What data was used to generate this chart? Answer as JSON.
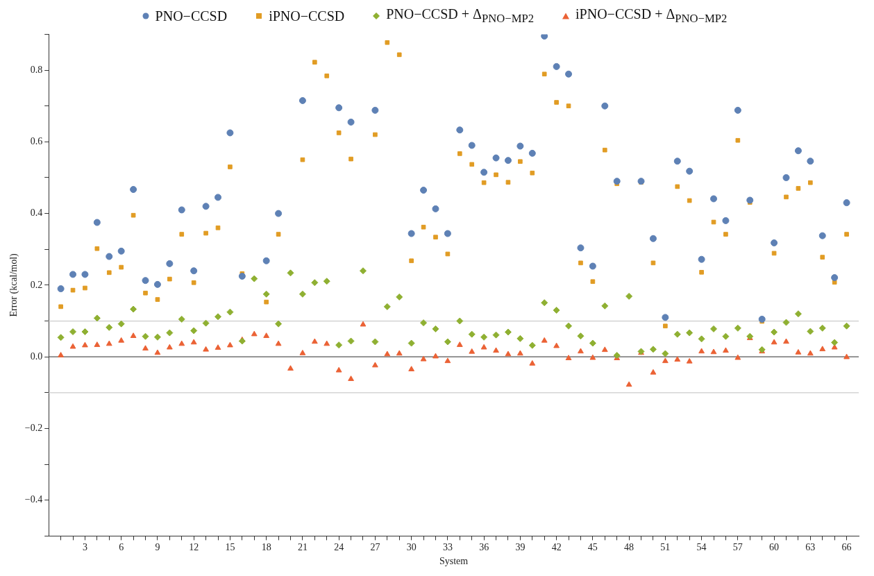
{
  "chart_data": {
    "type": "scatter",
    "xlabel": "System",
    "ylabel": "Error (kcal/mol)",
    "legend": "top",
    "grid": false,
    "x": [
      1,
      2,
      3,
      4,
      5,
      6,
      7,
      8,
      9,
      10,
      11,
      12,
      13,
      14,
      15,
      16,
      17,
      18,
      19,
      20,
      21,
      22,
      23,
      24,
      25,
      26,
      27,
      28,
      29,
      30,
      31,
      32,
      33,
      34,
      35,
      36,
      37,
      38,
      39,
      40,
      41,
      42,
      43,
      44,
      45,
      46,
      47,
      48,
      49,
      50,
      51,
      52,
      53,
      54,
      55,
      56,
      57,
      58,
      59,
      60,
      61,
      62,
      63,
      64,
      65,
      66
    ],
    "xlim": [
      0,
      67
    ],
    "xticks": [
      {
        "value": 1,
        "label": null
      },
      {
        "value": 2,
        "label": null
      },
      3,
      {
        "value": 4,
        "label": null
      },
      {
        "value": 5,
        "label": null
      },
      6,
      {
        "value": 7,
        "label": null
      },
      {
        "value": 8,
        "label": null
      },
      9,
      {
        "value": 10,
        "label": null
      },
      {
        "value": 11,
        "label": null
      },
      12,
      {
        "value": 13,
        "label": null
      },
      {
        "value": 14,
        "label": null
      },
      15,
      {
        "value": 16,
        "label": null
      },
      {
        "value": 17,
        "label": null
      },
      18,
      {
        "value": 19,
        "label": null
      },
      {
        "value": 20,
        "label": null
      },
      21,
      {
        "value": 22,
        "label": null
      },
      {
        "value": 23,
        "label": null
      },
      24,
      {
        "value": 25,
        "label": null
      },
      {
        "value": 26,
        "label": null
      },
      27,
      {
        "value": 28,
        "label": null
      },
      {
        "value": 29,
        "label": null
      },
      30,
      {
        "value": 31,
        "label": null
      },
      {
        "value": 32,
        "label": null
      },
      33,
      {
        "value": 34,
        "label": null
      },
      {
        "value": 35,
        "label": null
      },
      36,
      {
        "value": 37,
        "label": null
      },
      {
        "value": 38,
        "label": null
      },
      39,
      {
        "value": 40,
        "label": null
      },
      {
        "value": 41,
        "label": null
      },
      42,
      {
        "value": 43,
        "label": null
      },
      {
        "value": 44,
        "label": null
      },
      45,
      {
        "value": 46,
        "label": null
      },
      {
        "value": 47,
        "label": null
      },
      48,
      {
        "value": 49,
        "label": null
      },
      {
        "value": 50,
        "label": null
      },
      51,
      {
        "value": 52,
        "label": null
      },
      {
        "value": 53,
        "label": null
      },
      54,
      {
        "value": 55,
        "label": null
      },
      {
        "value": 56,
        "label": null
      },
      57,
      {
        "value": 58,
        "label": null
      },
      {
        "value": 59,
        "label": null
      },
      60,
      {
        "value": 61,
        "label": null
      },
      {
        "value": 62,
        "label": null
      },
      63,
      {
        "value": 64,
        "label": null
      },
      {
        "value": 65,
        "label": null
      },
      66
    ],
    "ylim": [
      -0.5,
      0.9
    ],
    "yticks": [
      {
        "value": -0.5,
        "label": null
      },
      {
        "value": -0.4,
        "label": "−0.4"
      },
      {
        "value": -0.3,
        "label": null
      },
      {
        "value": -0.2,
        "label": "−0.2"
      },
      {
        "value": -0.1,
        "label": null
      },
      {
        "value": 0,
        "label": "0.0"
      },
      {
        "value": 0.1,
        "label": null
      },
      {
        "value": 0.2,
        "label": "0.2"
      },
      {
        "value": 0.3,
        "label": null
      },
      {
        "value": 0.4,
        "label": "0.4"
      },
      {
        "value": 0.5,
        "label": null
      },
      {
        "value": 0.6,
        "label": "0.6"
      },
      {
        "value": 0.7,
        "label": null
      },
      {
        "value": 0.8,
        "label": "0.8"
      },
      {
        "value": 0.9,
        "label": null
      }
    ],
    "ref_lines": [
      {
        "axis": "y",
        "value": 0,
        "color": "#555555"
      },
      {
        "axis": "y",
        "value": 0.1,
        "color": "#cccccc"
      },
      {
        "axis": "y",
        "value": -0.1,
        "color": "#cccccc"
      }
    ],
    "series": [
      {
        "name": "PNO−CCSD",
        "color": "#5e81b5",
        "marker": "circle",
        "values": [
          0.19,
          0.23,
          0.23,
          0.375,
          0.28,
          0.295,
          0.467,
          0.213,
          0.202,
          0.26,
          0.41,
          0.24,
          0.42,
          0.445,
          0.625,
          0.225,
          null,
          0.268,
          0.4,
          null,
          0.715,
          null,
          null,
          0.695,
          0.655,
          null,
          0.688,
          null,
          null,
          0.344,
          0.465,
          0.413,
          0.344,
          0.633,
          0.59,
          0.515,
          0.555,
          0.548,
          0.588,
          0.568,
          0.895,
          0.81,
          0.789,
          0.304,
          0.253,
          0.7,
          0.49,
          null,
          0.49,
          0.33,
          0.11,
          0.546,
          0.518,
          0.272,
          0.441,
          0.38,
          0.688,
          0.437,
          0.105,
          0.318,
          0.5,
          0.575,
          0.546,
          0.338,
          0.221,
          0.43
        ]
      },
      {
        "name": "iPNO−CCSD",
        "color": "#e19c24",
        "marker": "square",
        "values": [
          0.14,
          0.186,
          0.192,
          0.302,
          0.235,
          0.25,
          0.395,
          0.178,
          0.16,
          0.217,
          0.342,
          0.207,
          0.345,
          0.36,
          0.53,
          0.232,
          null,
          0.153,
          0.342,
          null,
          0.55,
          0.822,
          0.784,
          0.625,
          0.552,
          null,
          0.62,
          0.877,
          0.843,
          0.268,
          0.362,
          0.334,
          0.287,
          0.567,
          0.537,
          0.486,
          0.508,
          0.487,
          0.545,
          0.513,
          0.789,
          0.71,
          0.7,
          0.262,
          0.21,
          0.577,
          0.483,
          null,
          0.487,
          0.262,
          0.086,
          0.475,
          0.436,
          0.236,
          0.376,
          0.342,
          0.604,
          0.431,
          0.099,
          0.289,
          0.446,
          0.47,
          0.486,
          0.278,
          0.208,
          0.342
        ]
      },
      {
        "name": "PNO−CCSD + Δ$_{PNO−MP2}$",
        "color": "#8fb032",
        "marker": "diamond",
        "values": [
          0.054,
          0.07,
          0.07,
          0.108,
          0.082,
          0.092,
          0.133,
          0.057,
          0.055,
          0.067,
          0.105,
          0.073,
          0.094,
          0.112,
          0.125,
          0.044,
          0.218,
          0.175,
          0.092,
          0.234,
          0.175,
          0.207,
          0.211,
          0.033,
          0.044,
          0.24,
          0.042,
          0.14,
          0.167,
          0.038,
          0.095,
          0.078,
          0.042,
          0.1,
          0.063,
          0.055,
          0.061,
          0.069,
          0.051,
          0.032,
          0.151,
          0.13,
          0.086,
          0.058,
          0.038,
          0.142,
          0.004,
          0.169,
          0.015,
          0.021,
          0.009,
          0.063,
          0.067,
          0.05,
          0.078,
          0.057,
          0.08,
          0.057,
          0.02,
          0.069,
          0.096,
          0.12,
          0.071,
          0.08,
          0.04,
          0.086
        ]
      },
      {
        "name": "iPNO−CCSD + Δ$_{PNO−MP2}$",
        "color": "#eb6235",
        "marker": "triangle",
        "values": [
          0.004,
          0.028,
          0.032,
          0.033,
          0.036,
          0.045,
          0.058,
          0.023,
          0.011,
          0.026,
          0.036,
          0.04,
          0.02,
          0.025,
          0.032,
          0.047,
          0.063,
          0.058,
          0.036,
          -0.033,
          0.01,
          0.042,
          0.036,
          -0.038,
          -0.062,
          0.09,
          -0.024,
          0.007,
          0.009,
          -0.035,
          -0.007,
          0.001,
          -0.012,
          0.033,
          0.014,
          0.026,
          0.017,
          0.007,
          0.009,
          -0.019,
          0.045,
          0.03,
          -0.004,
          0.015,
          -0.003,
          0.019,
          -0.004,
          -0.078,
          0.011,
          -0.044,
          -0.012,
          -0.008,
          -0.013,
          0.015,
          0.013,
          0.017,
          -0.003,
          0.052,
          0.015,
          0.04,
          0.042,
          0.012,
          0.009,
          0.021,
          0.026,
          -0.001
        ]
      }
    ]
  }
}
